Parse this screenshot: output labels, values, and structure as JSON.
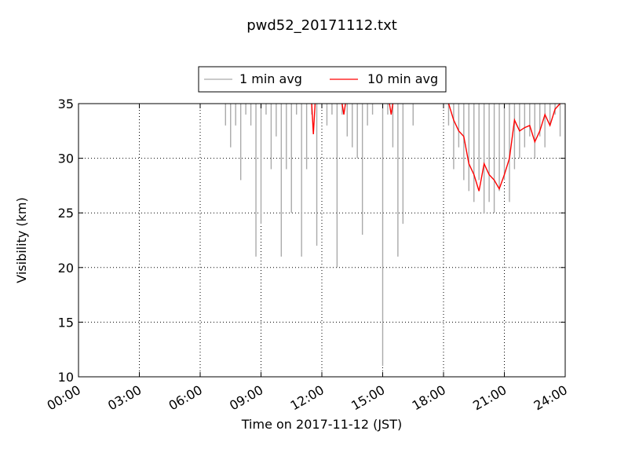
{
  "chart_data": {
    "type": "line",
    "title": "pwd52_20171112.txt",
    "xlabel": "Time on 2017-11-12 (JST)",
    "ylabel": "Visibility (km)",
    "xlim": [
      "00:00",
      "24:00"
    ],
    "ylim": [
      10,
      35
    ],
    "x_tick_labels": [
      "00:00",
      "03:00",
      "06:00",
      "09:00",
      "12:00",
      "15:00",
      "18:00",
      "21:00",
      "24:00"
    ],
    "y_tick_labels": [
      "10",
      "15",
      "20",
      "25",
      "30",
      "35"
    ],
    "grid": true,
    "legend_position": "top-center, above plot",
    "series": [
      {
        "name": "1 min avg",
        "color": "#aaaaaa",
        "x": [
          "07:15",
          "07:30",
          "07:45",
          "08:00",
          "08:15",
          "08:30",
          "08:45",
          "09:00",
          "09:15",
          "09:30",
          "09:45",
          "10:00",
          "10:15",
          "10:30",
          "10:45",
          "11:00",
          "11:15",
          "11:30",
          "11:45",
          "12:00",
          "12:15",
          "12:30",
          "12:45",
          "13:00",
          "13:15",
          "13:30",
          "13:45",
          "14:00",
          "14:15",
          "14:30",
          "14:45",
          "15:00",
          "15:15",
          "15:30",
          "15:45",
          "16:00",
          "16:15",
          "16:30",
          "16:45",
          "17:00",
          "17:15",
          "17:30",
          "17:45",
          "18:00",
          "18:15",
          "18:30",
          "18:45",
          "19:00",
          "19:15",
          "19:30",
          "19:45",
          "20:00",
          "20:15",
          "20:30",
          "20:45",
          "21:00",
          "21:15",
          "21:30",
          "21:45",
          "22:00",
          "22:15",
          "22:30",
          "22:45",
          "23:00",
          "23:15",
          "23:30",
          "23:45"
        ],
        "values": [
          33,
          31,
          33,
          28,
          34,
          33,
          21,
          24,
          34,
          29,
          32,
          21,
          29,
          25,
          34,
          21,
          29,
          34,
          22,
          35,
          33,
          34,
          20,
          34,
          32,
          31,
          30,
          23,
          33,
          34,
          35,
          11,
          34,
          31,
          21,
          24,
          35,
          33,
          35,
          35,
          35,
          35,
          35,
          35,
          33,
          29,
          31,
          28,
          27,
          26,
          28,
          25,
          26,
          25,
          27,
          28,
          26,
          29,
          30,
          31,
          32,
          30,
          32,
          31,
          33,
          34,
          32
        ]
      },
      {
        "name": "10 min avg",
        "color": "#ff0000",
        "x": [
          "11:30",
          "11:35",
          "11:40",
          "13:00",
          "13:05",
          "13:10",
          "15:20",
          "15:25",
          "15:30",
          "18:15",
          "18:30",
          "18:45",
          "19:00",
          "19:15",
          "19:30",
          "19:45",
          "20:00",
          "20:15",
          "20:30",
          "20:45",
          "21:00",
          "21:15",
          "21:30",
          "21:45",
          "22:00",
          "22:15",
          "22:30",
          "22:45",
          "23:00",
          "23:15",
          "23:30",
          "23:45"
        ],
        "values": [
          35,
          32.2,
          35,
          35,
          34,
          35,
          35,
          34,
          35,
          35,
          33.5,
          32.5,
          32,
          29.5,
          28.5,
          27,
          29.5,
          28.5,
          28,
          27.2,
          28.5,
          30,
          33.5,
          32.5,
          32.8,
          33,
          31.5,
          32.5,
          34,
          33,
          34.5,
          35
        ]
      }
    ]
  }
}
